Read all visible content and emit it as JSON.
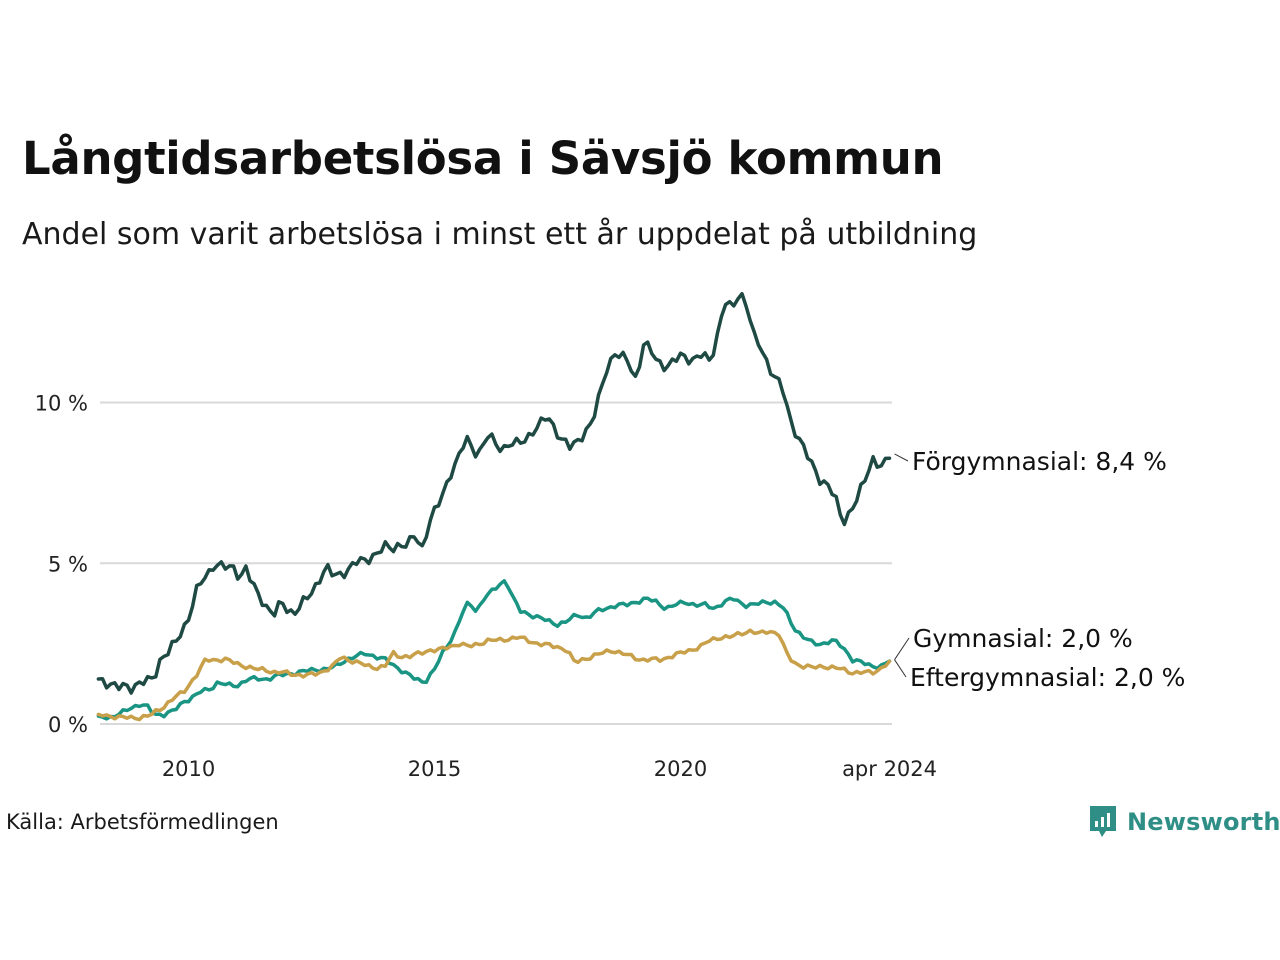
{
  "title": "Långtidsarbetslösa i Sävsjö kommun",
  "subtitle": "Andel som varit arbetslösa i minst ett år uppdelat på utbildning",
  "source": "Källa: Arbetsförmedlingen",
  "logo": {
    "text": "Newsworthy",
    "icon": "newsworthy-logo-icon",
    "color": "#2f8f86"
  },
  "chart_data": {
    "type": "line",
    "title": "Långtidsarbetslösa i Sävsjö kommun",
    "xlabel": "",
    "ylabel": "",
    "x_start": [
      2008,
      3
    ],
    "x_end": [
      2024,
      4
    ],
    "xlim": [
      2008.2,
      2024.3
    ],
    "ylim": [
      0,
      13.5
    ],
    "grid": true,
    "x_ticks": [
      {
        "value": 2010.0,
        "label": "2010"
      },
      {
        "value": 2015.0,
        "label": "2015"
      },
      {
        "value": 2020.0,
        "label": "2020"
      },
      {
        "value": 2024.25,
        "label": "apr 2024"
      }
    ],
    "y_ticks": [
      {
        "value": 0,
        "label": "0 %"
      },
      {
        "value": 5,
        "label": "5 %"
      },
      {
        "value": 10,
        "label": "10 %"
      }
    ],
    "series": [
      {
        "name": "Förgymnasial",
        "end_label": "Förgymnasial: 8,4 %",
        "color": "#1f4a44",
        "keyframes": [
          [
            2008.21,
            1.4
          ],
          [
            2008.4,
            1.25
          ],
          [
            2008.55,
            1.1
          ],
          [
            2008.7,
            1.2
          ],
          [
            2008.85,
            1.15
          ],
          [
            2009.0,
            1.25
          ],
          [
            2009.15,
            1.3
          ],
          [
            2009.3,
            1.5
          ],
          [
            2009.45,
            2.1
          ],
          [
            2009.6,
            2.2
          ],
          [
            2009.75,
            2.6
          ],
          [
            2009.9,
            3.0
          ],
          [
            2010.05,
            3.5
          ],
          [
            2010.2,
            4.3
          ],
          [
            2010.35,
            4.6
          ],
          [
            2010.5,
            4.95
          ],
          [
            2010.65,
            4.9
          ],
          [
            2010.8,
            4.85
          ],
          [
            2010.95,
            4.9
          ],
          [
            2011.05,
            4.5
          ],
          [
            2011.15,
            4.9
          ],
          [
            2011.3,
            4.3
          ],
          [
            2011.45,
            4.0
          ],
          [
            2011.6,
            3.6
          ],
          [
            2011.75,
            3.4
          ],
          [
            2011.9,
            3.8
          ],
          [
            2012.05,
            3.5
          ],
          [
            2012.2,
            3.5
          ],
          [
            2012.35,
            3.8
          ],
          [
            2012.5,
            4.1
          ],
          [
            2012.65,
            4.5
          ],
          [
            2012.8,
            4.85
          ],
          [
            2012.95,
            4.6
          ],
          [
            2013.1,
            4.7
          ],
          [
            2013.25,
            4.8
          ],
          [
            2013.4,
            5.0
          ],
          [
            2013.55,
            5.1
          ],
          [
            2013.7,
            5.2
          ],
          [
            2013.85,
            5.3
          ],
          [
            2014.0,
            5.5
          ],
          [
            2014.15,
            5.5
          ],
          [
            2014.3,
            5.6
          ],
          [
            2014.45,
            5.5
          ],
          [
            2014.6,
            5.9
          ],
          [
            2014.75,
            5.5
          ],
          [
            2014.9,
            6.3
          ],
          [
            2015.05,
            6.7
          ],
          [
            2015.2,
            7.3
          ],
          [
            2015.35,
            7.9
          ],
          [
            2015.5,
            8.3
          ],
          [
            2015.65,
            8.9
          ],
          [
            2015.8,
            8.5
          ],
          [
            2015.95,
            8.5
          ],
          [
            2016.1,
            9.0
          ],
          [
            2016.25,
            8.7
          ],
          [
            2016.4,
            8.6
          ],
          [
            2016.55,
            8.7
          ],
          [
            2016.7,
            8.7
          ],
          [
            2016.85,
            8.9
          ],
          [
            2017.0,
            9.1
          ],
          [
            2017.15,
            9.3
          ],
          [
            2017.3,
            9.6
          ],
          [
            2017.45,
            9.2
          ],
          [
            2017.6,
            8.8
          ],
          [
            2017.75,
            8.6
          ],
          [
            2017.9,
            8.8
          ],
          [
            2018.05,
            9.1
          ],
          [
            2018.2,
            9.3
          ],
          [
            2018.35,
            10.2
          ],
          [
            2018.5,
            11.1
          ],
          [
            2018.65,
            11.5
          ],
          [
            2018.8,
            11.4
          ],
          [
            2018.95,
            11.3
          ],
          [
            2019.1,
            10.7
          ],
          [
            2019.25,
            11.8
          ],
          [
            2019.4,
            11.6
          ],
          [
            2019.55,
            11.3
          ],
          [
            2019.7,
            11.1
          ],
          [
            2019.85,
            11.2
          ],
          [
            2020.0,
            11.5
          ],
          [
            2020.15,
            11.4
          ],
          [
            2020.3,
            11.3
          ],
          [
            2020.45,
            11.5
          ],
          [
            2020.6,
            11.3
          ],
          [
            2020.75,
            12.1
          ],
          [
            2020.9,
            13.1
          ],
          [
            2021.05,
            12.9
          ],
          [
            2021.2,
            13.5
          ],
          [
            2021.35,
            13.0
          ],
          [
            2021.5,
            12.0
          ],
          [
            2021.65,
            11.7
          ],
          [
            2021.8,
            11.1
          ],
          [
            2021.95,
            10.7
          ],
          [
            2022.1,
            10.3
          ],
          [
            2022.25,
            9.4
          ],
          [
            2022.4,
            8.9
          ],
          [
            2022.55,
            8.4
          ],
          [
            2022.7,
            8.0
          ],
          [
            2022.85,
            7.6
          ],
          [
            2023.0,
            7.4
          ],
          [
            2023.15,
            7.0
          ],
          [
            2023.3,
            6.3
          ],
          [
            2023.45,
            6.6
          ],
          [
            2023.6,
            7.0
          ],
          [
            2023.75,
            7.6
          ],
          [
            2023.9,
            8.3
          ],
          [
            2024.05,
            8.0
          ],
          [
            2024.2,
            8.1
          ],
          [
            2024.29,
            8.4
          ]
        ]
      },
      {
        "name": "Gymnasial",
        "end_label": "Gymnasial: 2,0 %",
        "color": "#1a9483",
        "keyframes": [
          [
            2008.21,
            0.25
          ],
          [
            2008.4,
            0.2
          ],
          [
            2008.6,
            0.3
          ],
          [
            2008.8,
            0.5
          ],
          [
            2009.0,
            0.6
          ],
          [
            2009.15,
            0.55
          ],
          [
            2009.3,
            0.3
          ],
          [
            2009.5,
            0.3
          ],
          [
            2009.7,
            0.4
          ],
          [
            2009.9,
            0.7
          ],
          [
            2010.05,
            0.8
          ],
          [
            2010.25,
            1.0
          ],
          [
            2010.45,
            1.1
          ],
          [
            2010.6,
            1.3
          ],
          [
            2010.8,
            1.2
          ],
          [
            2011.0,
            1.2
          ],
          [
            2011.2,
            1.4
          ],
          [
            2011.4,
            1.4
          ],
          [
            2011.6,
            1.4
          ],
          [
            2011.8,
            1.5
          ],
          [
            2012.0,
            1.55
          ],
          [
            2012.2,
            1.6
          ],
          [
            2012.4,
            1.65
          ],
          [
            2012.6,
            1.7
          ],
          [
            2012.8,
            1.7
          ],
          [
            2013.0,
            1.8
          ],
          [
            2013.2,
            2.0
          ],
          [
            2013.4,
            2.1
          ],
          [
            2013.6,
            2.2
          ],
          [
            2013.8,
            2.1
          ],
          [
            2014.0,
            2.0
          ],
          [
            2014.2,
            1.8
          ],
          [
            2014.4,
            1.6
          ],
          [
            2014.6,
            1.4
          ],
          [
            2014.8,
            1.3
          ],
          [
            2015.0,
            1.7
          ],
          [
            2015.2,
            2.3
          ],
          [
            2015.4,
            2.8
          ],
          [
            2015.55,
            3.4
          ],
          [
            2015.7,
            3.8
          ],
          [
            2015.85,
            3.5
          ],
          [
            2016.0,
            3.9
          ],
          [
            2016.15,
            4.1
          ],
          [
            2016.3,
            4.3
          ],
          [
            2016.45,
            4.5
          ],
          [
            2016.6,
            3.9
          ],
          [
            2016.75,
            3.5
          ],
          [
            2016.95,
            3.4
          ],
          [
            2017.15,
            3.3
          ],
          [
            2017.3,
            3.2
          ],
          [
            2017.5,
            3.1
          ],
          [
            2017.7,
            3.2
          ],
          [
            2017.9,
            3.4
          ],
          [
            2018.1,
            3.3
          ],
          [
            2018.3,
            3.5
          ],
          [
            2018.5,
            3.6
          ],
          [
            2018.7,
            3.7
          ],
          [
            2018.9,
            3.7
          ],
          [
            2019.1,
            3.8
          ],
          [
            2019.3,
            3.9
          ],
          [
            2019.5,
            3.8
          ],
          [
            2019.7,
            3.6
          ],
          [
            2019.9,
            3.7
          ],
          [
            2020.1,
            3.8
          ],
          [
            2020.3,
            3.7
          ],
          [
            2020.5,
            3.7
          ],
          [
            2020.7,
            3.6
          ],
          [
            2020.9,
            3.8
          ],
          [
            2021.1,
            3.9
          ],
          [
            2021.3,
            3.7
          ],
          [
            2021.5,
            3.7
          ],
          [
            2021.7,
            3.8
          ],
          [
            2021.9,
            3.8
          ],
          [
            2022.1,
            3.6
          ],
          [
            2022.3,
            3.0
          ],
          [
            2022.5,
            2.7
          ],
          [
            2022.7,
            2.5
          ],
          [
            2022.9,
            2.5
          ],
          [
            2023.1,
            2.6
          ],
          [
            2023.3,
            2.4
          ],
          [
            2023.5,
            2.0
          ],
          [
            2023.7,
            1.9
          ],
          [
            2023.9,
            1.8
          ],
          [
            2024.1,
            1.8
          ],
          [
            2024.29,
            2.0
          ]
        ]
      },
      {
        "name": "Eftergymnasial",
        "end_label": "Eftergymnasial: 2,0 %",
        "color": "#c9a04a",
        "keyframes": [
          [
            2008.21,
            0.3
          ],
          [
            2008.4,
            0.25
          ],
          [
            2008.6,
            0.2
          ],
          [
            2008.8,
            0.2
          ],
          [
            2009.0,
            0.2
          ],
          [
            2009.2,
            0.25
          ],
          [
            2009.35,
            0.4
          ],
          [
            2009.5,
            0.55
          ],
          [
            2009.7,
            0.8
          ],
          [
            2009.9,
            1.0
          ],
          [
            2010.05,
            1.3
          ],
          [
            2010.2,
            1.6
          ],
          [
            2010.35,
            2.0
          ],
          [
            2010.55,
            2.0
          ],
          [
            2010.75,
            2.0
          ],
          [
            2010.95,
            1.9
          ],
          [
            2011.15,
            1.8
          ],
          [
            2011.35,
            1.7
          ],
          [
            2011.55,
            1.7
          ],
          [
            2011.75,
            1.6
          ],
          [
            2011.95,
            1.6
          ],
          [
            2012.15,
            1.55
          ],
          [
            2012.35,
            1.5
          ],
          [
            2012.55,
            1.55
          ],
          [
            2012.75,
            1.65
          ],
          [
            2012.95,
            1.8
          ],
          [
            2013.1,
            2.1
          ],
          [
            2013.25,
            2.0
          ],
          [
            2013.45,
            1.9
          ],
          [
            2013.65,
            1.8
          ],
          [
            2013.85,
            1.75
          ],
          [
            2014.0,
            1.8
          ],
          [
            2014.15,
            2.2
          ],
          [
            2014.3,
            2.1
          ],
          [
            2014.5,
            2.1
          ],
          [
            2014.7,
            2.2
          ],
          [
            2014.9,
            2.3
          ],
          [
            2015.1,
            2.3
          ],
          [
            2015.3,
            2.4
          ],
          [
            2015.5,
            2.5
          ],
          [
            2015.7,
            2.4
          ],
          [
            2015.9,
            2.5
          ],
          [
            2016.1,
            2.6
          ],
          [
            2016.3,
            2.6
          ],
          [
            2016.5,
            2.65
          ],
          [
            2016.7,
            2.7
          ],
          [
            2016.9,
            2.6
          ],
          [
            2017.1,
            2.5
          ],
          [
            2017.3,
            2.45
          ],
          [
            2017.5,
            2.4
          ],
          [
            2017.7,
            2.3
          ],
          [
            2017.85,
            1.9
          ],
          [
            2018.0,
            2.0
          ],
          [
            2018.2,
            2.1
          ],
          [
            2018.4,
            2.2
          ],
          [
            2018.6,
            2.3
          ],
          [
            2018.8,
            2.2
          ],
          [
            2019.0,
            2.1
          ],
          [
            2019.2,
            2.0
          ],
          [
            2019.4,
            2.0
          ],
          [
            2019.6,
            2.0
          ],
          [
            2019.8,
            2.1
          ],
          [
            2020.0,
            2.2
          ],
          [
            2020.2,
            2.3
          ],
          [
            2020.4,
            2.4
          ],
          [
            2020.6,
            2.6
          ],
          [
            2020.8,
            2.7
          ],
          [
            2021.0,
            2.7
          ],
          [
            2021.2,
            2.8
          ],
          [
            2021.4,
            2.9
          ],
          [
            2021.6,
            2.8
          ],
          [
            2021.8,
            2.9
          ],
          [
            2022.0,
            2.8
          ],
          [
            2022.15,
            2.2
          ],
          [
            2022.3,
            1.9
          ],
          [
            2022.5,
            1.8
          ],
          [
            2022.7,
            1.75
          ],
          [
            2022.9,
            1.8
          ],
          [
            2023.1,
            1.75
          ],
          [
            2023.3,
            1.7
          ],
          [
            2023.5,
            1.6
          ],
          [
            2023.7,
            1.6
          ],
          [
            2023.9,
            1.6
          ],
          [
            2024.05,
            1.7
          ],
          [
            2024.29,
            2.0
          ]
        ]
      }
    ]
  }
}
